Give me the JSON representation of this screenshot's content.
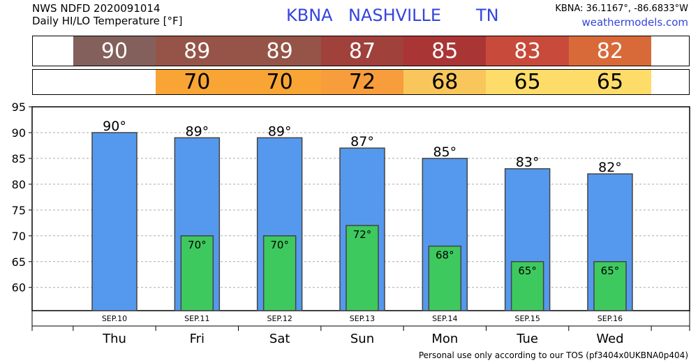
{
  "header": {
    "line1": "NWS NDFD 2020091014",
    "line2": "Daily HI/LO Temperature [°F]",
    "station": "KBNA",
    "city": "NASHVILLE",
    "state": "TN",
    "coords": "KBNA: 36.1167°, -86.6833°W",
    "site": "weathermodels.com"
  },
  "footer": "Personal use only according to our TOS (pf3404x0UKBNA0p404)",
  "colors": {
    "hi_bar": "#5599ee",
    "lo_bar": "#3ec95f",
    "hi_strip": [
      "#83605c",
      "#955447",
      "#955447",
      "#a0413b",
      "#aa3535",
      "#c84a3a",
      "#d86a3a"
    ],
    "lo_strip": [
      "",
      "#f8a535",
      "#f8a535",
      "#f79d3b",
      "#f8c65a",
      "#fddc6a",
      "#fddc6a"
    ]
  },
  "chart_data": {
    "type": "bar",
    "categories": [
      "Thu",
      "Fri",
      "Sat",
      "Sun",
      "Mon",
      "Tue",
      "Wed"
    ],
    "dates": [
      "SEP.10",
      "SEP.11",
      "SEP.12",
      "SEP.13",
      "SEP.14",
      "SEP.15",
      "SEP.16"
    ],
    "series": [
      {
        "name": "HI",
        "values": [
          90,
          89,
          89,
          87,
          85,
          83,
          82
        ]
      },
      {
        "name": "LO",
        "values": [
          null,
          70,
          70,
          72,
          68,
          65,
          65
        ]
      }
    ],
    "hi_labels": [
      "90°",
      "89°",
      "89°",
      "87°",
      "85°",
      "83°",
      "82°"
    ],
    "lo_labels": [
      "",
      "70°",
      "70°",
      "72°",
      "68°",
      "65°",
      "65°"
    ],
    "hi_strip_text": [
      "90",
      "89",
      "89",
      "87",
      "85",
      "83",
      "82"
    ],
    "lo_strip_text": [
      "",
      "70",
      "70",
      "72",
      "68",
      "65",
      "65"
    ],
    "yticks": [
      60,
      65,
      70,
      75,
      80,
      85,
      90,
      95
    ],
    "ylim": [
      55.5,
      95
    ],
    "grid": true
  }
}
